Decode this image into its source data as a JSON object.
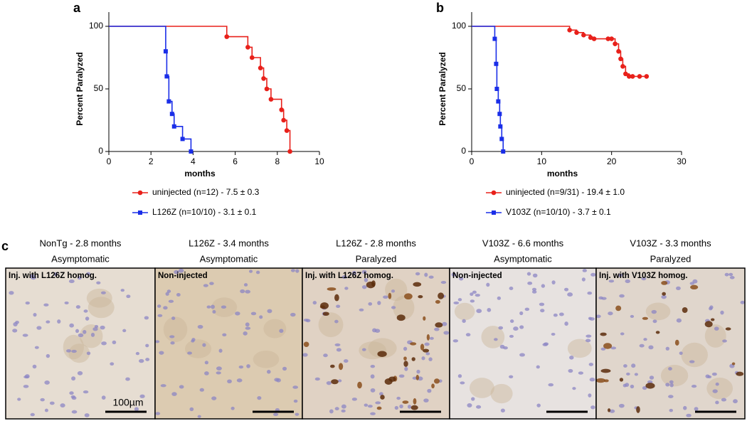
{
  "chart_data": [
    {
      "type": "step",
      "panel_label": "a",
      "x_label": "months",
      "y_label": "Percent Paralyzed",
      "xlim": [
        0,
        10
      ],
      "xticks": [
        0,
        2,
        4,
        6,
        8,
        10
      ],
      "ylim": [
        0,
        100
      ],
      "yticks": [
        0,
        50,
        100
      ],
      "series": [
        {
          "name": "uninjected (n=12) - 7.5 ± 0.3",
          "color": "#e8201a",
          "x": [
            0,
            5.6,
            6.6,
            6.8,
            7.2,
            7.35,
            7.5,
            7.7,
            8.2,
            8.3,
            8.45,
            8.6
          ],
          "values": [
            100,
            91.7,
            83.3,
            75,
            66.7,
            58.3,
            50,
            41.7,
            33.3,
            25,
            16.7,
            0
          ]
        },
        {
          "name": "L126Z (n=10/10) - 3.1 ± 0.1",
          "color": "#1a2ee8",
          "x": [
            0,
            2.7,
            2.75,
            2.85,
            3.0,
            3.1,
            3.5,
            3.9
          ],
          "values": [
            100,
            80,
            60,
            40,
            30,
            20,
            10,
            0
          ]
        }
      ]
    },
    {
      "type": "step",
      "panel_label": "b",
      "x_label": "months",
      "y_label": "Percent Paralyzed",
      "xlim": [
        0,
        30
      ],
      "xticks": [
        0,
        10,
        20,
        30
      ],
      "ylim": [
        0,
        100
      ],
      "yticks": [
        0,
        50,
        100
      ],
      "series": [
        {
          "name": "uninjected (n=9/31) - 19.4 ± 1.0",
          "color": "#e8201a",
          "x": [
            0,
            14,
            15,
            16,
            17,
            17.5,
            19.5,
            20,
            20.5,
            21,
            21.3,
            21.6,
            22,
            22.5,
            23,
            24,
            25
          ],
          "values": [
            100,
            97,
            95,
            93,
            91,
            90,
            90,
            90,
            86,
            80,
            74,
            68,
            62,
            60,
            60,
            60,
            60
          ]
        },
        {
          "name": "V103Z (n=10/10) - 3.7 ± 0.1",
          "color": "#1a2ee8",
          "x": [
            0,
            3.3,
            3.5,
            3.6,
            3.8,
            4.0,
            4.1,
            4.3,
            4.5
          ],
          "values": [
            100,
            90,
            70,
            50,
            40,
            30,
            20,
            10,
            0
          ]
        }
      ]
    }
  ],
  "panel_c": {
    "label": "c",
    "scale_bar": "100µm",
    "panels": [
      {
        "title": "NonTg - 2.8 months",
        "status": "Asymptomatic",
        "inset": "Inj. with L126Z homog."
      },
      {
        "title": "L126Z - 3.4 months",
        "status": "Asymptomatic",
        "inset": "Non-injected"
      },
      {
        "title": "L126Z - 2.8 months",
        "status": "Paralyzed",
        "inset": "Inj. with L126Z homog."
      },
      {
        "title": "V103Z - 6.6 months",
        "status": "Asymptomatic",
        "inset": "Non-injected"
      },
      {
        "title": "V103Z - 3.3 months",
        "status": "Paralyzed",
        "inset": "Inj. with V103Z homog."
      }
    ]
  }
}
